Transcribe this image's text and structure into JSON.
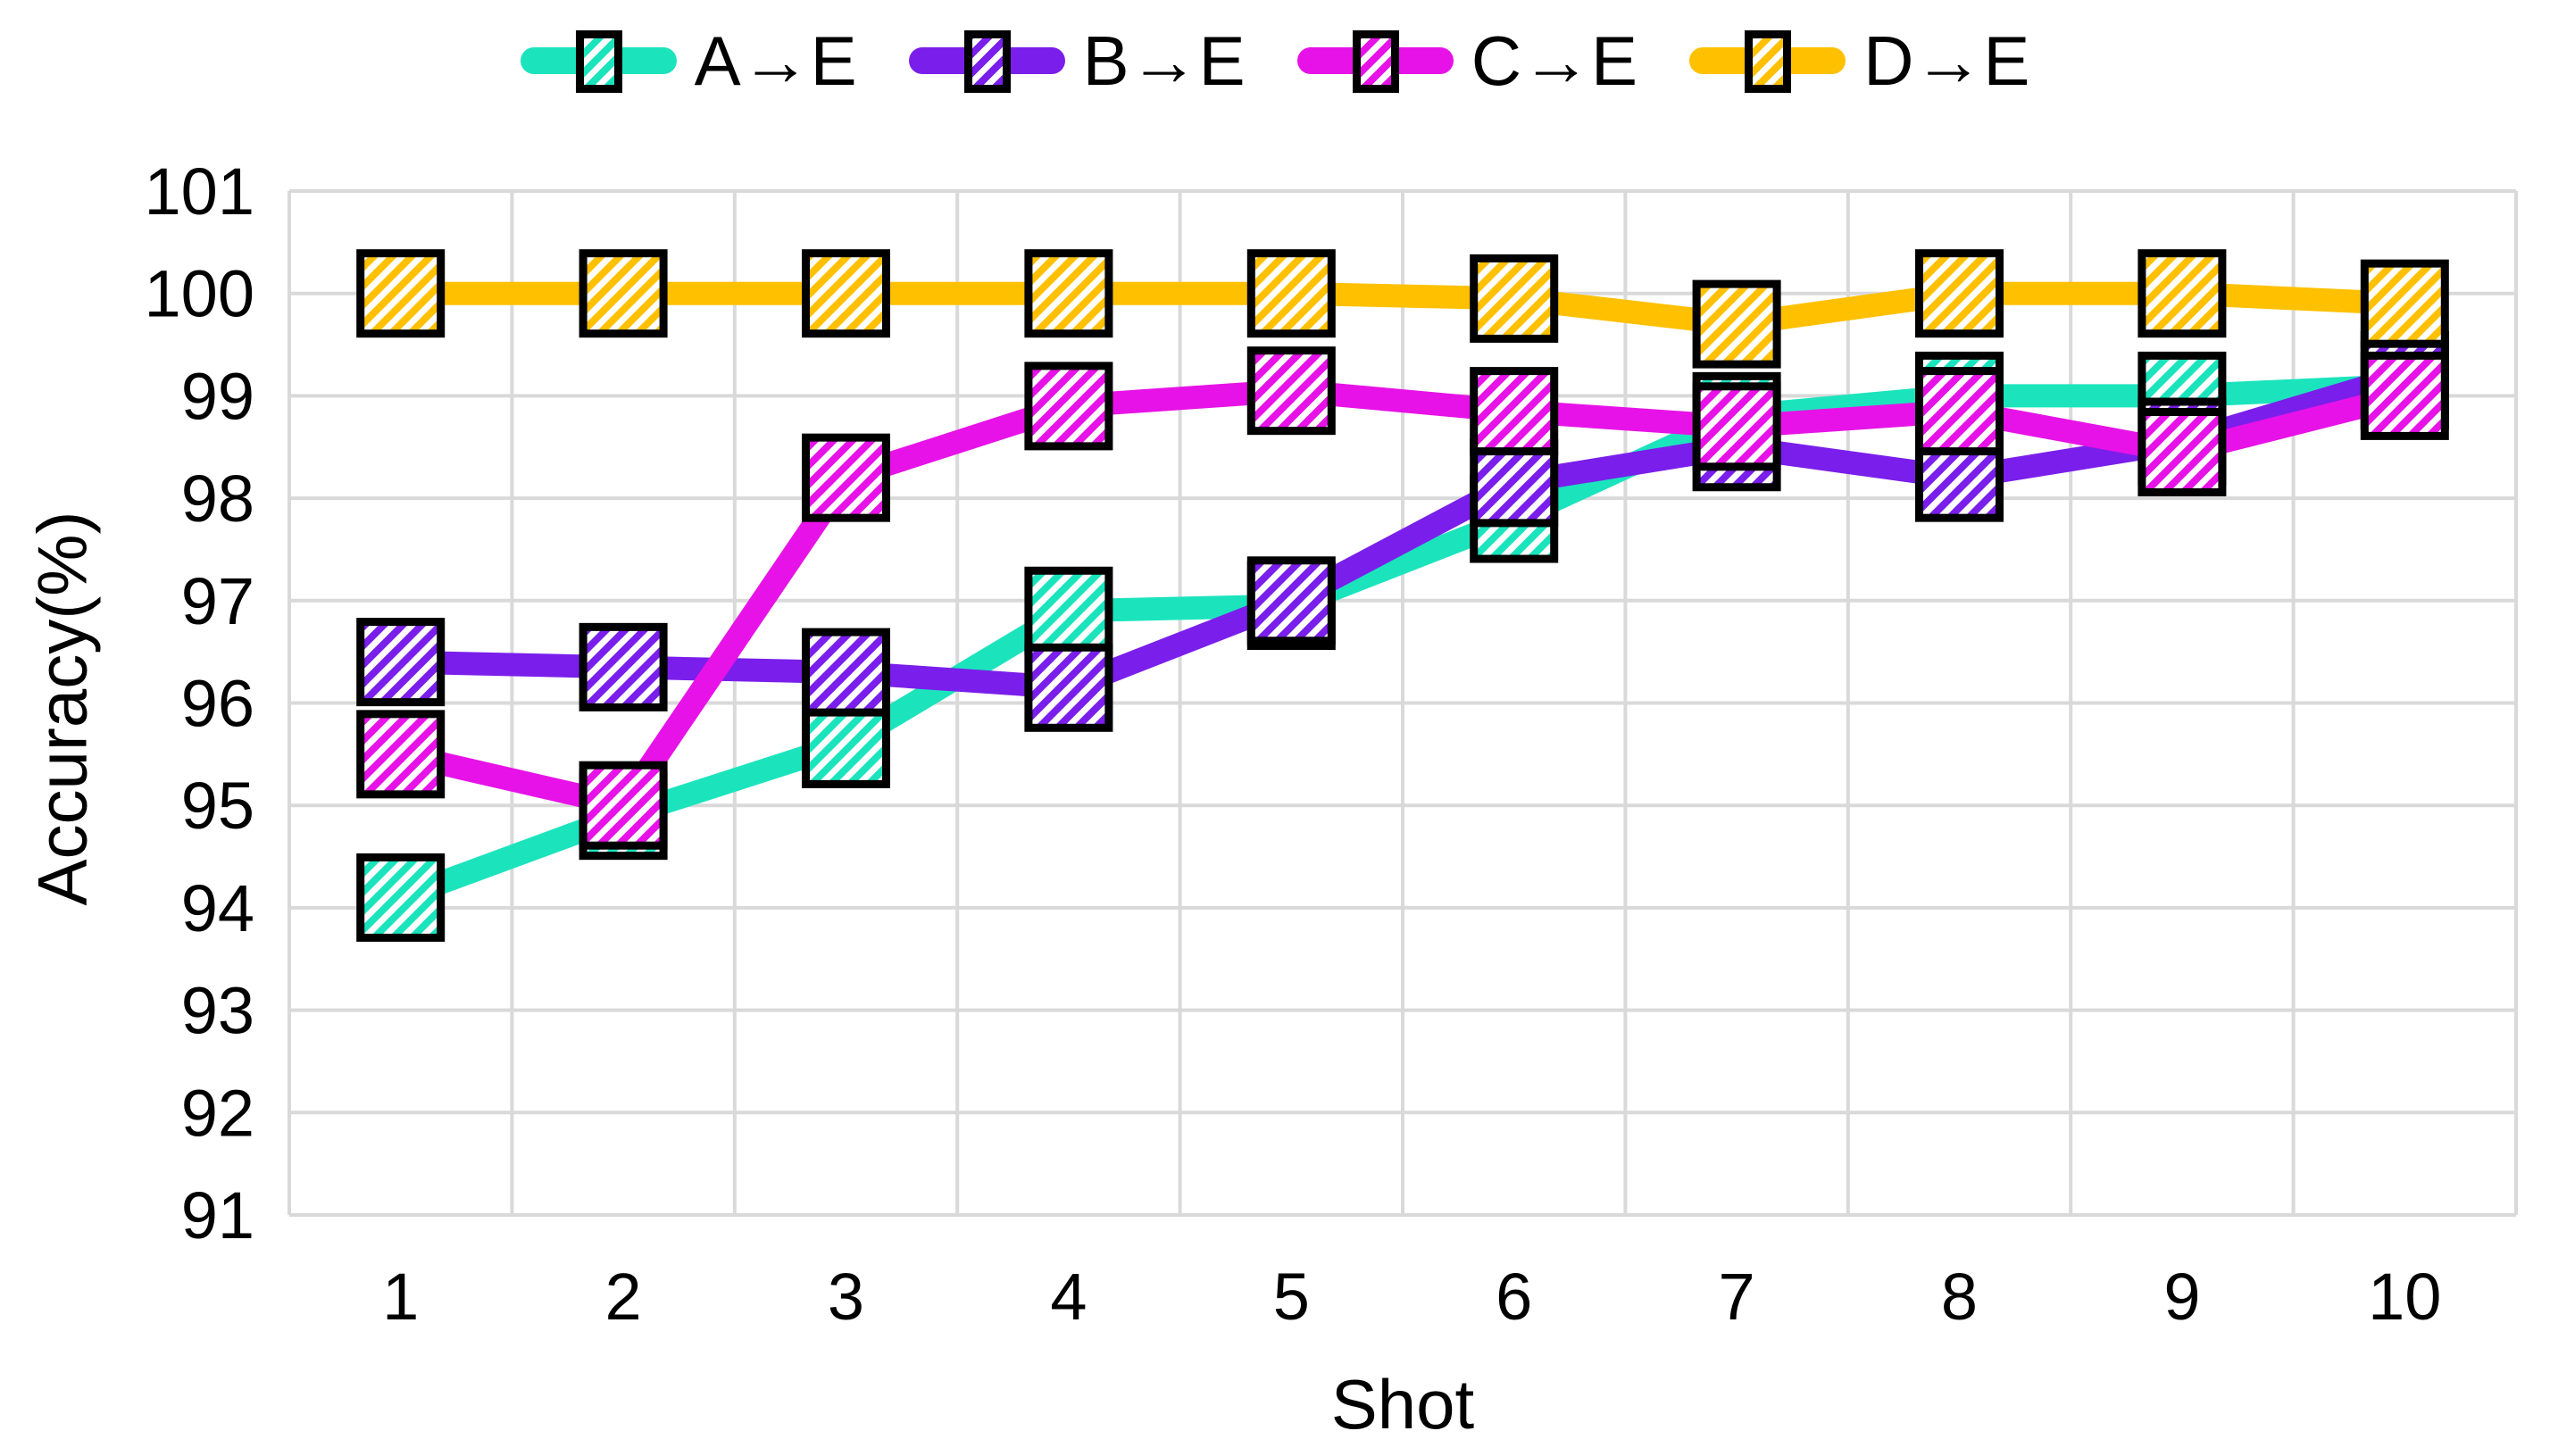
{
  "chart_data": {
    "type": "line",
    "title": "",
    "xlabel": "Shot",
    "ylabel": "Accuracy(%)",
    "x": [
      1,
      2,
      3,
      4,
      5,
      6,
      7,
      8,
      9,
      10
    ],
    "ylim": [
      91,
      101
    ],
    "ytick_step": 1,
    "yticks": [
      91,
      92,
      93,
      94,
      95,
      96,
      97,
      98,
      99,
      100,
      101
    ],
    "grid": true,
    "gridline_color": "#D9D9D9",
    "legend_position": "top",
    "marker_style": "hatched-square",
    "series": [
      {
        "name": "A→E",
        "color": "#1BE4BD",
        "values": [
          94.1,
          94.9,
          95.6,
          96.9,
          96.95,
          97.8,
          98.8,
          99.0,
          99.0,
          99.1
        ]
      },
      {
        "name": "B→E",
        "color": "#7A1EEB",
        "values": [
          96.4,
          96.35,
          96.3,
          96.15,
          97.0,
          98.15,
          98.5,
          98.2,
          98.55,
          99.2
        ]
      },
      {
        "name": "C→E",
        "color": "#E712E7",
        "values": [
          95.5,
          95.0,
          98.2,
          98.9,
          99.05,
          98.85,
          98.7,
          98.85,
          98.45,
          99.0
        ]
      },
      {
        "name": "D→E",
        "color": "#FFC000",
        "values": [
          100,
          100,
          100,
          100,
          100,
          99.95,
          99.7,
          100,
          100,
          99.9
        ]
      }
    ]
  }
}
